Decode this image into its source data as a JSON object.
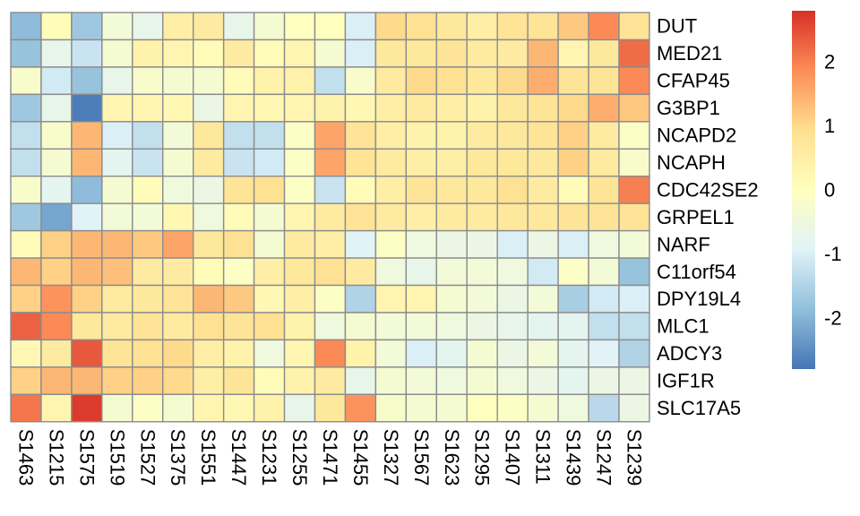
{
  "chart_data": {
    "type": "heatmap",
    "rows": [
      "DUT",
      "MED21",
      "CFAP45",
      "G3BP1",
      "NCAPD2",
      "NCAPH",
      "CDC42SE2",
      "GRPEL1",
      "NARF",
      "C11orf54",
      "DPY19L4",
      "MLC1",
      "ADCY3",
      "IGF1R",
      "SLC17A5"
    ],
    "columns": [
      "S1463",
      "S1215",
      "S1575",
      "S1519",
      "S1527",
      "S1375",
      "S1551",
      "S1447",
      "S1231",
      "S1255",
      "S1471",
      "S1455",
      "S1327",
      "S1567",
      "S1623",
      "S1295",
      "S1407",
      "S1311",
      "S1439",
      "S1247",
      "S1239"
    ],
    "values": [
      [
        -1.9,
        0.1,
        -1.7,
        -0.4,
        -0.7,
        0.5,
        0.6,
        -0.7,
        -0.3,
        0.0,
        0.0,
        -1.0,
        1.0,
        0.9,
        0.7,
        0.5,
        0.8,
        0.8,
        1.2,
        1.9,
        0.8
      ],
      [
        -1.8,
        -0.7,
        -1.2,
        -0.3,
        0.4,
        0.3,
        0.1,
        0.6,
        0.1,
        0.3,
        -0.3,
        -1.0,
        0.7,
        0.7,
        0.8,
        0.6,
        0.6,
        1.4,
        0.3,
        0.7,
        2.2
      ],
      [
        -0.2,
        -1.1,
        -1.8,
        -0.7,
        -0.2,
        -0.3,
        -0.3,
        0.1,
        0.4,
        0.4,
        -1.3,
        -0.2,
        0.6,
        1.0,
        0.9,
        0.7,
        1.0,
        1.5,
        0.8,
        0.8,
        1.9
      ],
      [
        -1.7,
        -0.7,
        -2.7,
        0.3,
        0.3,
        0.2,
        -0.6,
        0.3,
        0.2,
        0.3,
        0.4,
        0.2,
        0.5,
        0.6,
        0.5,
        0.4,
        0.7,
        0.8,
        1.0,
        1.5,
        1.2
      ],
      [
        -1.3,
        -0.2,
        1.4,
        -1.0,
        -1.3,
        -0.4,
        0.7,
        -1.3,
        -1.3,
        -0.1,
        1.6,
        0.8,
        0.5,
        0.4,
        0.4,
        0.6,
        0.7,
        0.8,
        1.1,
        0.6,
        -0.1
      ],
      [
        -1.3,
        -0.3,
        1.4,
        -0.8,
        -1.2,
        -0.3,
        0.6,
        -1.2,
        -1.1,
        -0.1,
        1.6,
        0.8,
        0.6,
        0.5,
        0.5,
        0.7,
        0.7,
        0.7,
        1.1,
        0.6,
        -0.2
      ],
      [
        -0.2,
        -0.8,
        -1.9,
        -0.3,
        0.1,
        -0.5,
        -0.6,
        0.8,
        0.9,
        -0.1,
        -1.2,
        0.1,
        0.5,
        0.8,
        0.7,
        0.7,
        0.9,
        0.6,
        0.1,
        0.8,
        2.0
      ],
      [
        -1.7,
        -2.2,
        -0.9,
        -0.4,
        -0.4,
        0.2,
        -0.5,
        0.1,
        -0.3,
        0.3,
        0.6,
        0.8,
        0.6,
        0.5,
        0.6,
        0.6,
        0.7,
        0.7,
        0.8,
        0.8,
        0.8
      ],
      [
        0.1,
        1.1,
        1.4,
        1.4,
        1.2,
        1.6,
        0.7,
        0.9,
        -0.3,
        0.6,
        0.5,
        -0.9,
        -0.1,
        -0.5,
        -0.6,
        -0.6,
        -1.0,
        -0.6,
        -1.0,
        -0.5,
        -0.4
      ],
      [
        1.4,
        1.1,
        1.4,
        1.3,
        0.6,
        0.6,
        0.1,
        -0.1,
        0.5,
        0.7,
        0.9,
        0.6,
        -0.5,
        -0.7,
        -0.4,
        -0.4,
        -0.5,
        -1.1,
        -0.1,
        -0.4,
        -1.8
      ],
      [
        1.1,
        1.8,
        1.1,
        0.6,
        0.7,
        0.8,
        1.4,
        1.2,
        0.2,
        0.5,
        -0.1,
        -1.5,
        0.3,
        0.3,
        -0.3,
        -0.4,
        -0.6,
        -0.4,
        -1.6,
        -1.1,
        -1.0
      ],
      [
        2.3,
        1.9,
        0.7,
        0.6,
        0.8,
        0.6,
        0.9,
        0.8,
        0.9,
        0.4,
        -0.5,
        -0.3,
        -0.4,
        -0.4,
        -0.5,
        -0.6,
        -0.7,
        -0.8,
        -0.8,
        -1.3,
        -1.3
      ],
      [
        0.2,
        0.6,
        2.4,
        0.8,
        0.9,
        1.0,
        0.5,
        0.4,
        -0.5,
        0.3,
        1.9,
        0.4,
        -0.4,
        -1.0,
        -0.8,
        -0.3,
        -0.6,
        -0.4,
        -0.8,
        -0.9,
        -1.5
      ],
      [
        1.1,
        1.4,
        1.4,
        1.1,
        1.1,
        1.0,
        0.5,
        0.8,
        0.1,
        0.4,
        0.6,
        -0.7,
        -0.3,
        -0.4,
        -0.5,
        -0.3,
        -0.5,
        -0.6,
        -0.8,
        -0.6,
        -0.6
      ],
      [
        2.1,
        0.3,
        2.7,
        -0.3,
        -0.1,
        -0.3,
        0.3,
        0.2,
        0.4,
        -0.7,
        0.7,
        1.8,
        -0.2,
        -0.3,
        -0.3,
        0.0,
        -0.1,
        -0.3,
        -0.5,
        -1.4,
        -0.6
      ]
    ],
    "legend": {
      "ticks": [
        -2,
        -1,
        0,
        1,
        2
      ],
      "tick_labels": [
        "-2",
        "-1",
        "0",
        "1",
        "2"
      ],
      "range": [
        -2.8,
        2.8
      ],
      "colors": [
        "#4575B4",
        "#91BFDB",
        "#E0F3F8",
        "#FFFFBF",
        "#FEE090",
        "#FC8D59",
        "#D73027"
      ]
    },
    "cell_border_color": "#8C8C8C",
    "grid": true,
    "legend_position": "right"
  }
}
